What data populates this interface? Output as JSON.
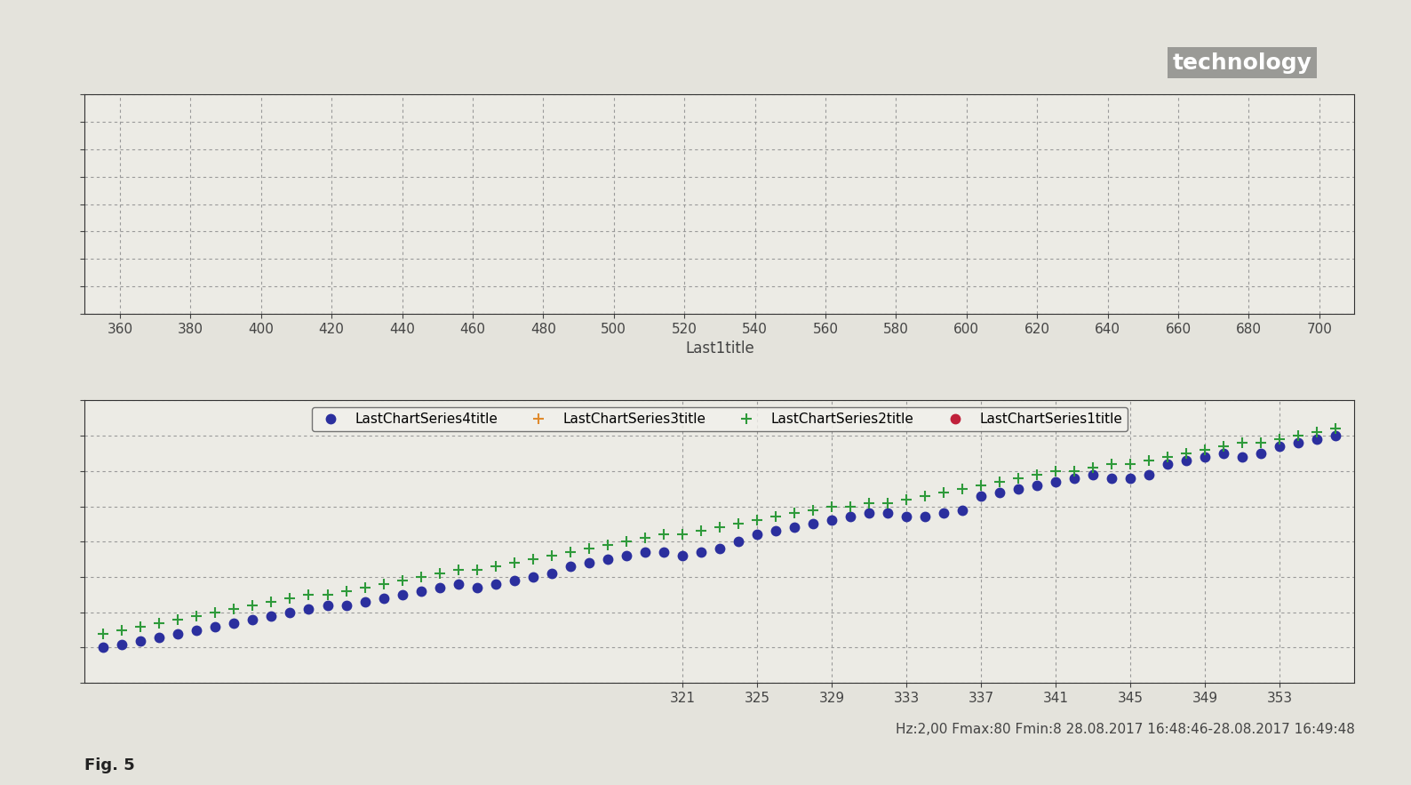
{
  "header": "technology",
  "caption": "Fig. 5",
  "chart_data": [
    {
      "type": "scatter",
      "xlabel": "Last1title",
      "xlim": [
        350,
        710
      ],
      "xticks": [
        360,
        380,
        400,
        420,
        440,
        460,
        480,
        500,
        520,
        540,
        560,
        580,
        600,
        620,
        640,
        660,
        680,
        700
      ],
      "ylim": [
        0,
        80
      ],
      "yticks": [
        0,
        10,
        20,
        30,
        40,
        50,
        60,
        70,
        80
      ],
      "grid": true,
      "tick_labels": "x"
    },
    {
      "type": "scatter",
      "annotation": "Hz:2,00 Fmax:80 Fmin:8 28.08.2017 16:48:46-28.08.2017 16:49:48",
      "x": [
        290,
        291,
        292,
        293,
        294,
        295,
        296,
        297,
        298,
        299,
        300,
        301,
        302,
        303,
        304,
        305,
        306,
        307,
        308,
        309,
        310,
        311,
        312,
        313,
        314,
        315,
        316,
        317,
        318,
        319,
        320,
        321,
        322,
        323,
        324,
        325,
        326,
        327,
        328,
        329,
        330,
        331,
        332,
        333,
        334,
        335,
        336,
        337,
        338,
        339,
        340,
        341,
        342,
        343,
        344,
        345,
        346,
        347,
        348,
        349,
        350,
        351,
        352,
        353,
        354,
        355,
        356
      ],
      "xlim": [
        289,
        357
      ],
      "xticks": [
        321,
        325,
        329,
        333,
        337,
        341,
        345,
        349,
        353
      ],
      "ylim": [
        0,
        80
      ],
      "yticks": [
        0,
        10,
        20,
        30,
        40,
        50,
        60,
        70,
        80
      ],
      "grid": true,
      "tick_labels": "x",
      "legend": "upper center",
      "series": [
        {
          "name": "LastChartSeries4title",
          "color": "#2b2f9e",
          "marker": "o",
          "values": [
            10,
            11,
            12,
            13,
            14,
            15,
            16,
            17,
            18,
            19,
            20,
            21,
            22,
            22,
            23,
            24,
            25,
            26,
            27,
            28,
            27,
            28,
            29,
            30,
            31,
            33,
            34,
            35,
            36,
            37,
            37,
            36,
            37,
            38,
            40,
            42,
            43,
            44,
            45,
            46,
            47,
            48,
            48,
            47,
            47,
            48,
            49,
            53,
            54,
            55,
            56,
            57,
            58,
            59,
            58,
            58,
            59,
            62,
            63,
            64,
            65,
            64,
            65,
            67,
            68,
            69,
            70
          ]
        },
        {
          "name": "LastChartSeries3title",
          "color": "#e08a2c",
          "marker": "plus",
          "values": [
            null,
            null,
            null,
            null,
            null,
            null,
            null,
            null,
            null,
            null,
            null,
            null,
            null,
            null,
            null,
            null,
            null,
            null,
            null,
            null,
            null,
            null,
            null,
            null,
            null,
            null,
            null,
            null,
            null,
            null,
            null,
            null,
            null,
            null,
            null,
            null,
            null,
            null,
            null,
            null,
            null,
            null,
            null,
            null,
            null,
            null,
            null,
            null,
            null,
            null,
            null,
            null,
            null,
            null,
            null,
            null,
            null,
            null,
            null,
            null,
            null,
            null,
            null,
            null,
            null,
            null,
            null
          ]
        },
        {
          "name": "LastChartSeries2title",
          "color": "#2e9a3a",
          "marker": "plus",
          "values": [
            14,
            15,
            16,
            17,
            18,
            19,
            20,
            21,
            22,
            23,
            24,
            25,
            25,
            26,
            27,
            28,
            29,
            30,
            31,
            32,
            32,
            33,
            34,
            35,
            36,
            37,
            38,
            39,
            40,
            41,
            42,
            42,
            43,
            44,
            45,
            46,
            47,
            48,
            49,
            50,
            50,
            51,
            51,
            52,
            53,
            54,
            55,
            56,
            57,
            58,
            59,
            60,
            60,
            61,
            62,
            62,
            63,
            64,
            65,
            66,
            67,
            68,
            68,
            69,
            70,
            71,
            72
          ]
        },
        {
          "name": "LastChartSeries1title",
          "color": "#c0203a",
          "marker": "o",
          "values": [
            null,
            null,
            null,
            null,
            null,
            null,
            null,
            null,
            null,
            null,
            null,
            null,
            null,
            null,
            null,
            null,
            null,
            null,
            null,
            null,
            null,
            null,
            null,
            null,
            null,
            null,
            null,
            null,
            null,
            null,
            null,
            null,
            null,
            null,
            null,
            null,
            null,
            null,
            null,
            null,
            null,
            null,
            null,
            null,
            null,
            null,
            null,
            null,
            null,
            null,
            null,
            null,
            null,
            null,
            null,
            null,
            null,
            null,
            null,
            null,
            null,
            null,
            null,
            null,
            null,
            null,
            null
          ]
        }
      ]
    }
  ]
}
